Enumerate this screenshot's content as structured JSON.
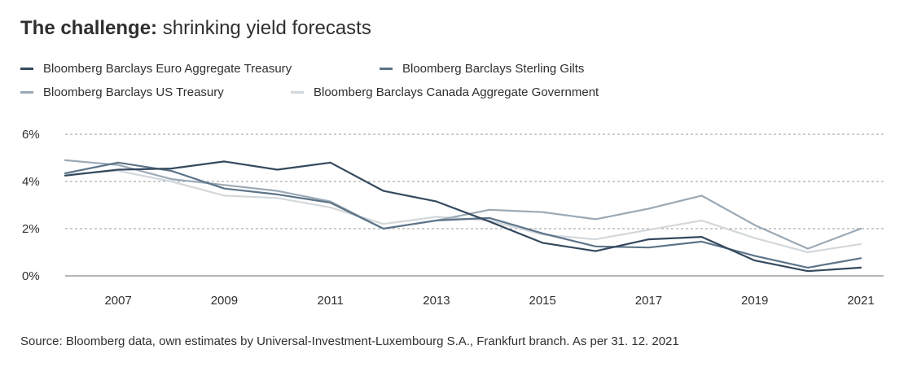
{
  "title": {
    "bold": "The challenge:",
    "light": "shrinking yield forecasts"
  },
  "source": "Source: Bloomberg data, own estimates by Universal-Investment-Luxembourg S.A., Frankfurt branch. As per 31. 12. 2021",
  "chart_data": {
    "type": "line",
    "title": "The challenge: shrinking yield forecasts",
    "xlabel": "",
    "ylabel": "",
    "x": [
      2006,
      2007,
      2008,
      2009,
      2010,
      2011,
      2012,
      2013,
      2014,
      2015,
      2016,
      2017,
      2018,
      2019,
      2020,
      2021
    ],
    "x_tick_labels": [
      "2007",
      "2009",
      "2011",
      "2013",
      "2015",
      "2017",
      "2019",
      "2021"
    ],
    "x_ticks": [
      2007,
      2009,
      2011,
      2013,
      2015,
      2017,
      2019,
      2021
    ],
    "y_tick_labels": [
      "0%",
      "2%",
      "4%",
      "6%"
    ],
    "y_ticks": [
      0,
      2,
      4,
      6
    ],
    "ylim": [
      0,
      6
    ],
    "xlim": [
      2006,
      2021
    ],
    "grid": "horizontal dashed",
    "legend_position": "top",
    "series": [
      {
        "name": "Bloomberg Barclays Euro Aggregate Treasury",
        "color": "#34495e",
        "values": [
          4.25,
          4.5,
          4.55,
          4.85,
          4.5,
          4.8,
          3.6,
          3.15,
          2.3,
          1.4,
          1.05,
          1.55,
          1.65,
          0.65,
          0.2,
          0.35
        ]
      },
      {
        "name": "Bloomberg Barclays Sterling Gilts",
        "color": "#5c7489",
        "values": [
          4.35,
          4.8,
          4.45,
          3.7,
          3.45,
          3.1,
          2.0,
          2.35,
          2.45,
          1.8,
          1.25,
          1.2,
          1.45,
          0.85,
          0.35,
          0.75
        ]
      },
      {
        "name": "Bloomberg Barclays US Treasury",
        "color": "#9aa9b5",
        "values": [
          4.9,
          4.7,
          4.1,
          3.85,
          3.6,
          3.15,
          2.0,
          2.35,
          2.8,
          2.7,
          2.4,
          2.85,
          3.4,
          2.15,
          1.15,
          2.0
        ]
      },
      {
        "name": "Bloomberg Barclays Canada Aggregate Government",
        "color": "#d3d8dc",
        "values": [
          4.3,
          4.45,
          4.0,
          3.4,
          3.3,
          2.9,
          2.2,
          2.5,
          2.35,
          1.75,
          1.55,
          1.95,
          2.35,
          1.6,
          1.0,
          1.35
        ]
      }
    ]
  }
}
